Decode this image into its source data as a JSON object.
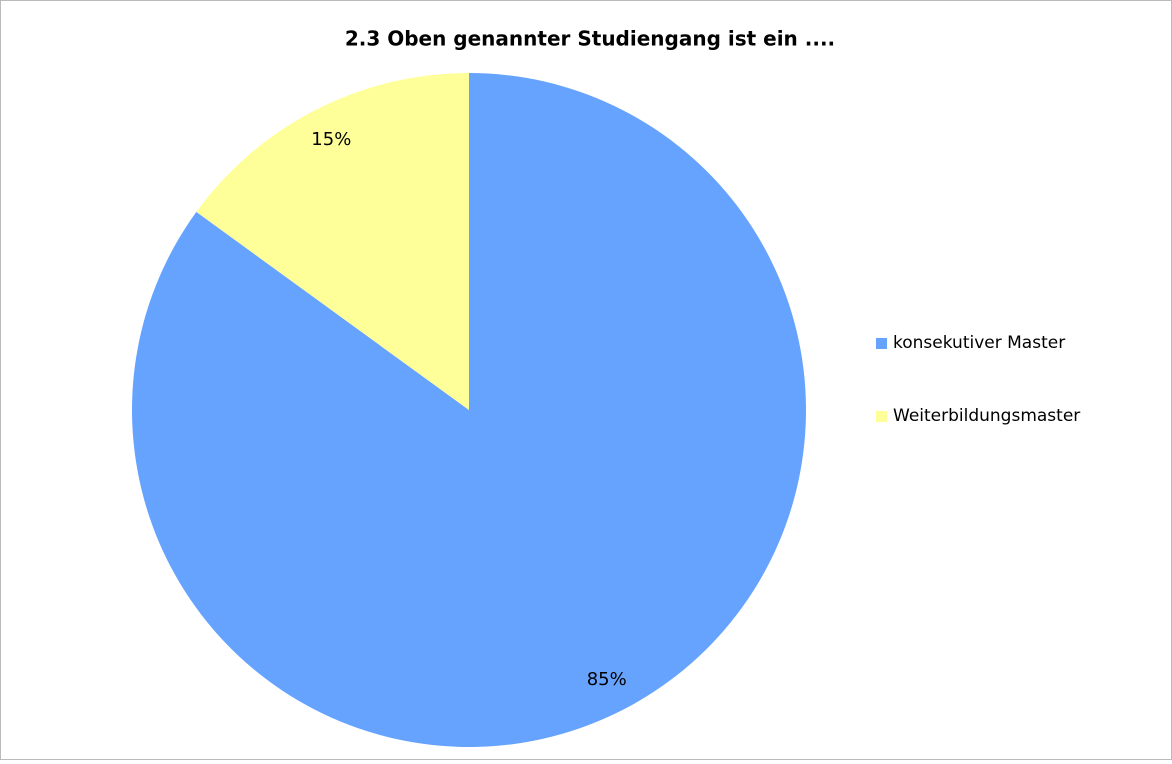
{
  "chart_data": {
    "type": "pie",
    "title": "2.3  Oben genannter Studiengang ist ein ....",
    "categories": [
      "konsekutiver Master",
      "Weiterbildungsmaster"
    ],
    "values": [
      85,
      15
    ],
    "value_labels": [
      "85%",
      "15%"
    ],
    "colors": [
      "#66a3ff",
      "#ffff99"
    ],
    "legend": "right"
  }
}
